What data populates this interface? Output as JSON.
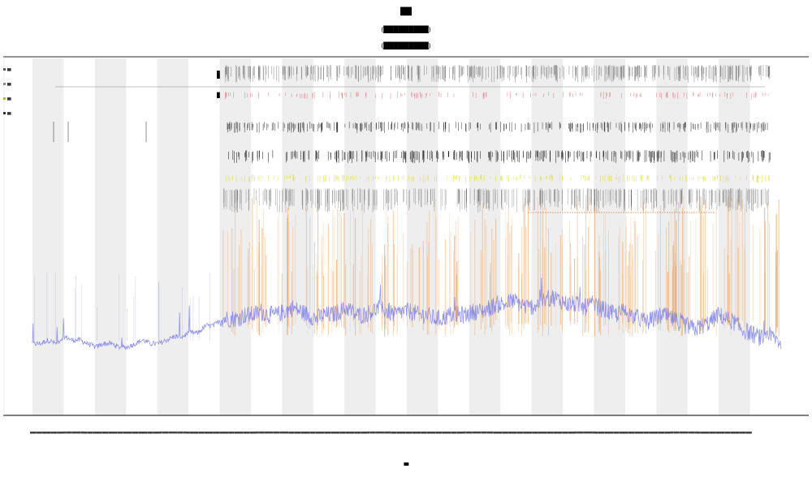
{
  "title": {
    "line1": "██",
    "line2": "(█████████)",
    "line3": "(█████████)"
  },
  "xlabel": "█",
  "track_labels": [
    "████",
    "███"
  ],
  "legend": [
    {
      "label": "██",
      "color": "#555555"
    },
    {
      "label": "██",
      "color": "#8a8a8a"
    },
    {
      "label": "██",
      "color": "#b8b840"
    },
    {
      "label": "██",
      "color": "#333333"
    }
  ],
  "colors": {
    "line": "#6f73e8",
    "orange": "#f0a05a",
    "yellow": "#dede30",
    "red": "#e06060",
    "band": "#eeeeee",
    "ink": "#222222"
  },
  "chart_data": {
    "type": "line",
    "grid": false,
    "legend_position": "left",
    "ylim": [
      0,
      1
    ],
    "bands": 24,
    "series": [
      {
        "values": [
          0.2,
          0.2,
          0.21,
          0.2,
          0.22,
          0.21,
          0.21,
          0.2,
          0.19,
          0.2,
          0.2,
          0.19,
          0.19,
          0.2,
          0.21,
          0.2,
          0.2,
          0.21,
          0.22,
          0.22,
          0.23,
          0.23,
          0.25,
          0.25,
          0.27,
          0.27,
          0.27,
          0.28,
          0.28,
          0.29,
          0.28,
          0.28,
          0.29,
          0.3,
          0.29,
          0.28,
          0.27,
          0.28,
          0.28,
          0.29,
          0.3,
          0.28,
          0.28,
          0.29,
          0.3,
          0.29,
          0.28,
          0.29,
          0.29,
          0.28,
          0.28,
          0.27,
          0.27,
          0.28,
          0.28,
          0.28,
          0.29,
          0.29,
          0.3,
          0.31,
          0.31,
          0.32,
          0.31,
          0.3,
          0.31,
          0.32,
          0.33,
          0.32,
          0.31,
          0.31,
          0.3,
          0.31,
          0.3,
          0.29,
          0.28,
          0.29,
          0.28,
          0.27,
          0.26,
          0.27,
          0.28,
          0.27,
          0.26,
          0.25,
          0.24,
          0.25,
          0.26,
          0.28,
          0.27,
          0.26,
          0.24,
          0.23,
          0.22,
          0.21,
          0.22,
          0.2
        ]
      }
    ]
  }
}
